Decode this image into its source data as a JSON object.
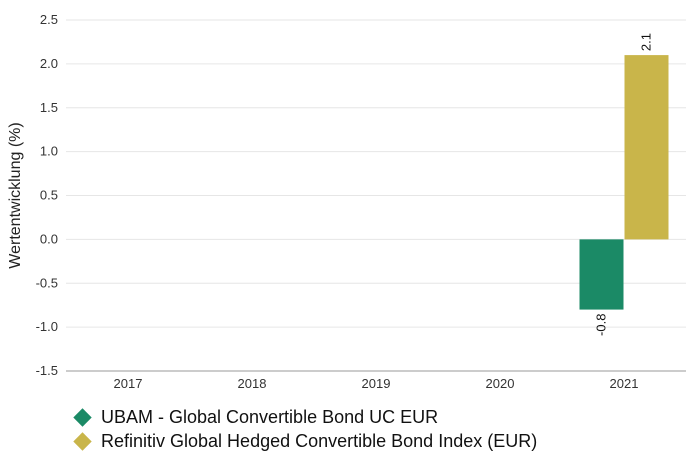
{
  "chart_data": {
    "type": "bar",
    "categories": [
      "2017",
      "2018",
      "2019",
      "2020",
      "2021"
    ],
    "series": [
      {
        "name": "UBAM - Global Convertible Bond UC EUR",
        "color": "#1b8a66",
        "values": [
          null,
          null,
          null,
          null,
          -0.8
        ],
        "labels": [
          "",
          "",
          "",
          "",
          "-0.8"
        ]
      },
      {
        "name": "Refinitiv Global Hedged Convertible Bond Index (EUR)",
        "color": "#c9b54a",
        "values": [
          null,
          null,
          null,
          null,
          2.1
        ],
        "labels": [
          "",
          "",
          "",
          "",
          "2.1"
        ]
      }
    ],
    "ylabel": "Wertentwicklung (%)",
    "ylim": [
      -1.5,
      2.5
    ],
    "yticks": [
      -1.5,
      -1.0,
      -0.5,
      0.0,
      0.5,
      1.0,
      1.5,
      2.0,
      2.5
    ],
    "ytick_labels": [
      "-1.5",
      "-1.0",
      "-0.5",
      "0.0",
      "0.5",
      "1.0",
      "1.5",
      "2.0",
      "2.5"
    ],
    "grid": true,
    "legend_position": "bottom-left"
  }
}
